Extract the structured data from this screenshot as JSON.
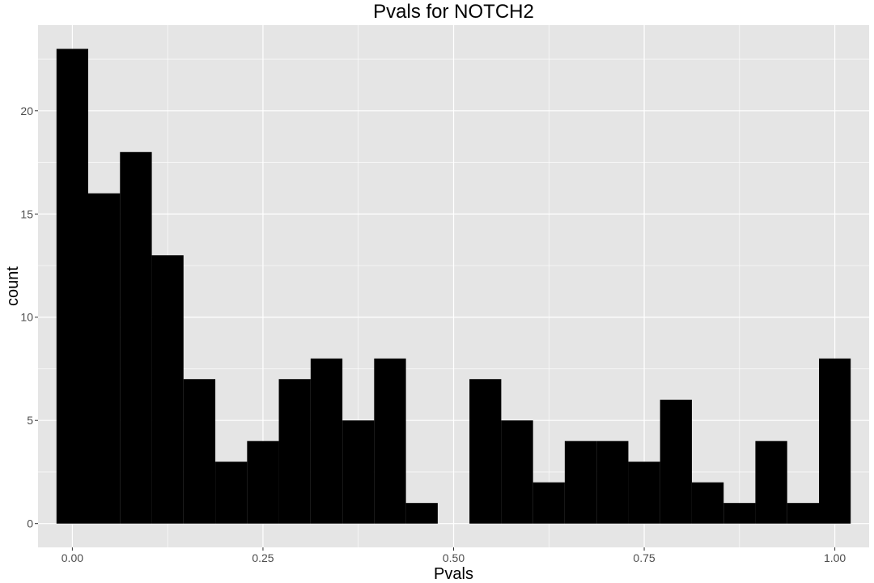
{
  "chart_data": {
    "type": "bar",
    "title": "Pvals for NOTCH2",
    "xlabel": "Pvals",
    "ylabel": "count",
    "xlim": [
      -0.045,
      1.045
    ],
    "ylim": [
      -1.15,
      24.15
    ],
    "x_ticks": [
      0.0,
      0.25,
      0.5,
      0.75,
      1.0
    ],
    "x_tick_labels": [
      "0.00",
      "0.25",
      "0.50",
      "0.75",
      "1.00"
    ],
    "y_ticks": [
      0,
      5,
      10,
      15,
      20
    ],
    "y_tick_labels": [
      "0",
      "5",
      "10",
      "15",
      "20"
    ],
    "bin_width": 0.0417,
    "bins": [
      {
        "x0": -0.0208,
        "x1": 0.0208,
        "count": 23
      },
      {
        "x0": 0.0208,
        "x1": 0.0625,
        "count": 16
      },
      {
        "x0": 0.0625,
        "x1": 0.1042,
        "count": 18
      },
      {
        "x0": 0.1042,
        "x1": 0.1458,
        "count": 13
      },
      {
        "x0": 0.1458,
        "x1": 0.1875,
        "count": 7
      },
      {
        "x0": 0.1875,
        "x1": 0.2292,
        "count": 3
      },
      {
        "x0": 0.2292,
        "x1": 0.2708,
        "count": 4
      },
      {
        "x0": 0.2708,
        "x1": 0.3125,
        "count": 7
      },
      {
        "x0": 0.3125,
        "x1": 0.3542,
        "count": 8
      },
      {
        "x0": 0.3542,
        "x1": 0.3958,
        "count": 5
      },
      {
        "x0": 0.3958,
        "x1": 0.4375,
        "count": 8
      },
      {
        "x0": 0.4375,
        "x1": 0.4792,
        "count": 1
      },
      {
        "x0": 0.4792,
        "x1": 0.5208,
        "count": 0
      },
      {
        "x0": 0.5208,
        "x1": 0.5625,
        "count": 7
      },
      {
        "x0": 0.5625,
        "x1": 0.6042,
        "count": 5
      },
      {
        "x0": 0.6042,
        "x1": 0.6458,
        "count": 2
      },
      {
        "x0": 0.6458,
        "x1": 0.6875,
        "count": 4
      },
      {
        "x0": 0.6875,
        "x1": 0.7292,
        "count": 4
      },
      {
        "x0": 0.7292,
        "x1": 0.7708,
        "count": 3
      },
      {
        "x0": 0.7708,
        "x1": 0.8125,
        "count": 6
      },
      {
        "x0": 0.8125,
        "x1": 0.8542,
        "count": 2
      },
      {
        "x0": 0.8542,
        "x1": 0.8958,
        "count": 1
      },
      {
        "x0": 0.8958,
        "x1": 0.9375,
        "count": 4
      },
      {
        "x0": 0.9375,
        "x1": 0.9792,
        "count": 1
      },
      {
        "x0": 0.9792,
        "x1": 1.0208,
        "count": 8
      }
    ],
    "grid": true,
    "colors": {
      "bar": "#000000",
      "panel": "#e5e5e5",
      "grid": "#ffffff"
    }
  }
}
